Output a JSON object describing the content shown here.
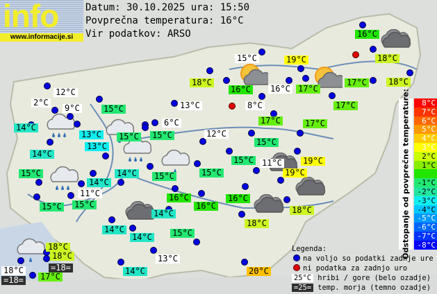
{
  "logo": {
    "word": "info",
    "url": "www.informacije.si"
  },
  "header": {
    "date_line": "Datum: 30.10.2025 ura: 15:50",
    "avg_line": "Povprečna temperatura: 16°C",
    "source_line": "Vir podatkov: ARSO"
  },
  "colors": {
    "station_ok": "#0000e0",
    "station_missing": "#e00000",
    "mountain_bg": "#ffffff",
    "sea_bg": "#303030"
  },
  "temp_colors": {
    "11°C": "#ffffff",
    "12°C": "#ffffff",
    "13°C": "#11eef0",
    "14°C": "#22e6c6",
    "15°C": "#22e872",
    "16°C": "#22e600",
    "17°C": "#66ee11",
    "18°C": "#ccf520",
    "19°C": "#ffff00",
    "20°C": "#ffc000"
  },
  "stations": [
    {
      "temp": "12°C",
      "kind": "mountain"
    },
    {
      "temp": "2°C",
      "kind": "mountain"
    },
    {
      "temp": "9°C",
      "kind": "mountain"
    },
    {
      "temp": "14°C"
    },
    {
      "temp": "13°C"
    },
    {
      "temp": "13°C"
    },
    {
      "temp": "14°C"
    },
    {
      "temp": "15°C"
    },
    {
      "temp": "15°C"
    },
    {
      "temp": "15°C"
    },
    {
      "temp": "15°C"
    },
    {
      "temp": "11°C",
      "kind": "mountain"
    },
    {
      "temp": "14°C"
    },
    {
      "temp": "14°C"
    },
    {
      "temp": "14°C"
    },
    {
      "temp": "14°C"
    },
    {
      "temp": "14°C"
    },
    {
      "temp": "13°C",
      "kind": "mountain"
    },
    {
      "temp": "14°C"
    },
    {
      "temp": "15°C"
    },
    {
      "temp": "20°C"
    },
    {
      "temp": "18°C"
    },
    {
      "temp": "18°C",
      "kind": "mountain"
    },
    {
      "temp": "18°C"
    },
    {
      "temp": "18°C"
    },
    {
      "temp": "17°C"
    },
    {
      "temp": "15°C"
    },
    {
      "temp": "12°C",
      "kind": "mountain"
    },
    {
      "temp": "15°C"
    },
    {
      "temp": "17°C"
    },
    {
      "temp": "15°C"
    },
    {
      "temp": "19°C"
    },
    {
      "temp": "11°C",
      "kind": "mountain"
    },
    {
      "temp": "19°C"
    },
    {
      "temp": "15°C"
    },
    {
      "temp": "15°C"
    },
    {
      "temp": "16°C"
    },
    {
      "temp": "16°C"
    },
    {
      "temp": "16°C"
    },
    {
      "temp": "18°C"
    },
    {
      "temp": "15°C",
      "kind": "mountain"
    },
    {
      "temp": "18°C"
    },
    {
      "temp": "16°C"
    },
    {
      "temp": "16°C",
      "kind": "mountain"
    },
    {
      "temp": "13°C",
      "kind": "mountain"
    },
    {
      "temp": "8°C",
      "kind": "mountain"
    },
    {
      "temp": "17°C"
    },
    {
      "temp": "6°C",
      "kind": "mountain"
    },
    {
      "temp": "15°C"
    },
    {
      "temp": "16°C"
    },
    {
      "temp": "18°C"
    },
    {
      "temp": "18°C"
    },
    {
      "temp": "17°C"
    },
    {
      "temp": "19°C"
    },
    {
      "temp": "17°C"
    },
    {
      "temp": "17°C"
    }
  ],
  "sea_temps": [
    {
      "temp": "=18="
    },
    {
      "temp": "=18="
    }
  ],
  "missing_stations": 2,
  "weather_icons": [
    "rain",
    "rain",
    "rain",
    "light-rain",
    "light-rain",
    "sun-cloud",
    "sun-cloud",
    "dark-cloud",
    "dark-cloud",
    "dark-cloud",
    "dark-cloud",
    "dark-cloud",
    "rain-heavy",
    "cloud-drizzle"
  ],
  "scale": {
    "title": "Odstopanje od povprečne temperature:",
    "steps": [
      {
        "label": "8°C",
        "color": "#ff0000"
      },
      {
        "label": "7°C",
        "color": "#ff3300"
      },
      {
        "label": "6°C",
        "color": "#ff6600"
      },
      {
        "label": "5°C",
        "color": "#ff9900"
      },
      {
        "label": "4°C",
        "color": "#ffcc00"
      },
      {
        "label": "3°C",
        "color": "#ffff00"
      },
      {
        "label": "2°C",
        "color": "#ccff00"
      },
      {
        "label": "1°C",
        "color": "#88ee00"
      },
      {
        "label": "",
        "color": "#22e600"
      },
      {
        "label": "-1°C",
        "color": "#22e872"
      },
      {
        "label": "-2°C",
        "color": "#22e6a0"
      },
      {
        "label": "-3°C",
        "color": "#11eef0"
      },
      {
        "label": "-4°C",
        "color": "#00c8ff"
      },
      {
        "label": "-5°C",
        "color": "#0099ff"
      },
      {
        "label": "-6°C",
        "color": "#0066ff"
      },
      {
        "label": "-7°C",
        "color": "#0033ff"
      },
      {
        "label": "-8°C",
        "color": "#0000ff"
      }
    ]
  },
  "legend": {
    "title": "Legenda:",
    "available": "na voljo so podatki zadnje ure",
    "missing": "ni podatka za zadnjo uro",
    "mountain_sample": "25°C",
    "mountain_text": "hribi / gore (belo ozadje)",
    "sea_sample": "=25=",
    "sea_text": "temp. morja (temno ozadje)"
  }
}
